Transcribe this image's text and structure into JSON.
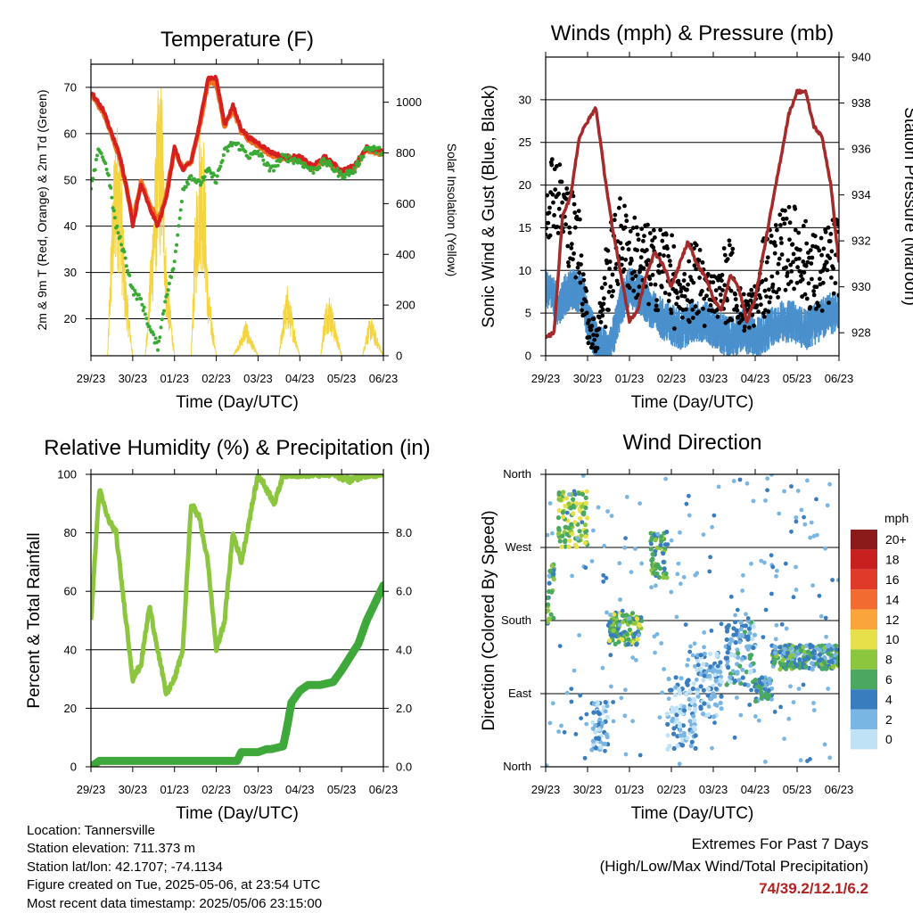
{
  "chart_data": [
    {
      "id": "temperature",
      "type": "line",
      "title": "Temperature (F)",
      "xlabel": "Time (Day/UTC)",
      "ylabel": "2m & 9m T (Red, Orange) & 2m Td (Green)",
      "ylabel_right": "Solar Insolation (Yellow)",
      "x_ticks": [
        "29/23",
        "30/23",
        "01/23",
        "02/23",
        "03/23",
        "04/23",
        "05/23",
        "06/23"
      ],
      "ylim": [
        12,
        75
      ],
      "y_ticks": [
        20,
        30,
        40,
        50,
        60,
        70
      ],
      "ylim_right": [
        0,
        1150
      ],
      "y_ticks_right": [
        0,
        200,
        400,
        600,
        800,
        1000
      ],
      "grid": true,
      "series": [
        {
          "name": "2m T",
          "color": "#d62020",
          "x": [
            0,
            0.3,
            0.5,
            0.7,
            0.9,
            1.0,
            1.2,
            1.4,
            1.6,
            1.8,
            2.0,
            2.2,
            2.4,
            2.6,
            2.8,
            3.0,
            3.2,
            3.4,
            3.6,
            3.8,
            4.0,
            4.3,
            4.6,
            5.0,
            5.3,
            5.6,
            6.0,
            6.3,
            6.6,
            7.0
          ],
          "values": [
            69,
            65,
            60,
            55,
            46,
            40,
            49,
            44,
            40,
            46,
            57,
            52,
            54,
            62,
            72,
            72,
            62,
            66,
            61,
            59,
            58,
            56,
            55,
            55,
            53,
            55,
            52,
            53,
            57,
            56
          ]
        },
        {
          "name": "9m T",
          "color": "#f07020",
          "x": [
            0,
            0.3,
            0.5,
            0.7,
            0.9,
            1.0,
            1.2,
            1.4,
            1.6,
            1.8,
            2.0,
            2.2,
            2.4,
            2.6,
            2.8,
            3.0,
            3.2,
            3.4,
            3.6,
            3.8,
            4.0,
            4.3,
            4.6,
            5.0,
            5.3,
            5.6,
            6.0,
            6.3,
            6.6,
            7.0
          ],
          "values": [
            68.5,
            64.5,
            59.5,
            54.5,
            46,
            41,
            49.5,
            45,
            41,
            46.5,
            56.5,
            52.5,
            54,
            61.5,
            71,
            71,
            61.5,
            65.5,
            60.5,
            58.5,
            57.5,
            55.5,
            54.5,
            54.5,
            52.5,
            54.5,
            51.5,
            52.5,
            56.5,
            55.5
          ]
        },
        {
          "name": "2m Td",
          "color": "#3aaa35",
          "x": [
            0,
            0.2,
            0.4,
            0.6,
            0.8,
            1.0,
            1.2,
            1.4,
            1.6,
            1.8,
            2.0,
            2.2,
            2.4,
            2.6,
            2.8,
            3.0,
            3.2,
            3.4,
            3.6,
            3.8,
            4.0,
            4.3,
            4.6,
            5.0,
            5.3,
            5.6,
            6.0,
            6.3,
            6.6,
            7.0
          ],
          "values": [
            48,
            57,
            52,
            40,
            34,
            26,
            24,
            18,
            14,
            25,
            32,
            48,
            51,
            49,
            52,
            50,
            56,
            58,
            57,
            55,
            56,
            52,
            55,
            54,
            52,
            54,
            51,
            52,
            57,
            56
          ]
        },
        {
          "name": "Solar Insolation",
          "color": "#f5d442",
          "axis": "right",
          "x": [
            0,
            0.4,
            0.5,
            0.6,
            0.7,
            0.8,
            1.0,
            1.3,
            1.4,
            1.5,
            1.6,
            1.7,
            1.8,
            2.0,
            2.4,
            2.5,
            2.6,
            2.7,
            2.8,
            3.0,
            3.4,
            3.6,
            3.7,
            3.8,
            4.0,
            4.5,
            4.6,
            4.7,
            5.0,
            5.5,
            5.6,
            5.7,
            6.0,
            6.5,
            6.6,
            6.7,
            7.0
          ],
          "values": [
            0,
            0,
            600,
            950,
            900,
            400,
            0,
            0,
            300,
            650,
            1050,
            1100,
            400,
            0,
            0,
            600,
            950,
            900,
            300,
            0,
            0,
            80,
            150,
            90,
            0,
            0,
            180,
            280,
            0,
            0,
            200,
            260,
            0,
            0,
            110,
            160,
            0
          ]
        }
      ]
    },
    {
      "id": "winds",
      "type": "scatter",
      "title": "Winds (mph) & Pressure (mb)",
      "xlabel": "Time (Day/UTC)",
      "ylabel": "Sonic Wind & Gust (Blue, Black)",
      "ylabel_right": "Station Pressure (Maroon)",
      "x_ticks": [
        "29/23",
        "30/23",
        "01/23",
        "02/23",
        "03/23",
        "04/23",
        "05/23",
        "06/23"
      ],
      "ylim": [
        0,
        35
      ],
      "y_ticks": [
        0,
        5,
        10,
        15,
        20,
        25,
        30
      ],
      "ylim_right": [
        927,
        940
      ],
      "y_ticks_right": [
        928,
        930,
        932,
        934,
        936,
        938,
        940
      ],
      "grid": true,
      "series": [
        {
          "name": "Sonic Wind",
          "color": "#4a90cc",
          "x": [
            0,
            0.3,
            0.6,
            0.9,
            1.0,
            1.2,
            1.5,
            1.8,
            2.0,
            2.3,
            2.6,
            2.9,
            3.2,
            3.5,
            3.8,
            4.1,
            4.4,
            4.7,
            5.0,
            5.3,
            5.6,
            5.9,
            6.2,
            6.5,
            6.8,
            7.0
          ],
          "values": [
            8,
            6,
            8,
            7,
            4,
            2,
            0,
            6,
            8,
            7,
            5,
            4,
            3,
            4,
            4,
            3,
            2,
            3,
            2,
            3,
            4,
            4,
            3,
            4,
            5,
            5
          ]
        },
        {
          "name": "Gust",
          "color": "#000000",
          "x": [
            0,
            0.2,
            0.4,
            0.6,
            0.8,
            1.0,
            1.2,
            1.5,
            1.8,
            2.0,
            2.3,
            2.6,
            2.9,
            3.2,
            3.5,
            3.8,
            4.1,
            4.4,
            4.7,
            5.0,
            5.3,
            5.6,
            5.9,
            6.2,
            6.5,
            6.8,
            7.0
          ],
          "values": [
            18,
            20,
            17,
            15,
            13,
            4,
            2,
            10,
            14,
            12,
            11,
            10,
            11,
            6,
            9,
            8,
            7,
            9,
            5,
            6,
            10,
            12,
            13,
            11,
            9,
            11,
            12
          ]
        },
        {
          "name": "Station Pressure",
          "color": "#a52a2a",
          "axis": "right",
          "x": [
            0,
            0.2,
            0.4,
            0.6,
            0.8,
            1.0,
            1.2,
            1.4,
            1.6,
            1.8,
            2.0,
            2.2,
            2.4,
            2.6,
            2.8,
            3.0,
            3.2,
            3.4,
            3.6,
            3.8,
            4.0,
            4.2,
            4.4,
            4.6,
            4.8,
            5.0,
            5.2,
            5.4,
            5.6,
            5.8,
            6.0,
            6.2,
            6.4,
            6.6,
            6.8,
            7.0
          ],
          "values": [
            927.8,
            928.0,
            933.0,
            934.0,
            936.5,
            937.2,
            937.8,
            935.0,
            932.5,
            930.5,
            928.5,
            929.0,
            930.5,
            931.5,
            931.0,
            930.0,
            931.0,
            932.0,
            931.0,
            930.5,
            929.5,
            929.0,
            930.5,
            930.0,
            928.5,
            929.5,
            931.5,
            933.5,
            935.5,
            937.5,
            938.5,
            938.5,
            937.0,
            936.5,
            934.5,
            931.0
          ]
        }
      ]
    },
    {
      "id": "rh",
      "type": "line",
      "title": "Relative Humidity (%) & Precipitation (in)",
      "xlabel": "Time (Day/UTC)",
      "ylabel": "Percent & Total Rainfall",
      "x_ticks": [
        "29/23",
        "30/23",
        "01/23",
        "02/23",
        "03/23",
        "04/23",
        "05/23",
        "06/23"
      ],
      "ylim": [
        0,
        100
      ],
      "y_ticks": [
        0,
        20,
        40,
        60,
        80,
        100
      ],
      "ylim_right": [
        0,
        10
      ],
      "y_ticks_right": [
        "0.0",
        "2.0",
        "4.0",
        "6.0",
        "8.0"
      ],
      "grid": true,
      "series": [
        {
          "name": "Relative Humidity",
          "color": "#8cc63f",
          "x": [
            0,
            0.2,
            0.4,
            0.6,
            0.8,
            1.0,
            1.2,
            1.4,
            1.6,
            1.8,
            2.0,
            2.2,
            2.4,
            2.6,
            2.8,
            3.0,
            3.2,
            3.4,
            3.6,
            3.8,
            4.0,
            4.2,
            4.4,
            4.6,
            4.8,
            5.0,
            5.4,
            5.8,
            6.2,
            6.6,
            7.0
          ],
          "values": [
            50,
            95,
            85,
            80,
            55,
            30,
            35,
            55,
            40,
            25,
            30,
            40,
            90,
            85,
            70,
            40,
            50,
            80,
            70,
            85,
            100,
            95,
            90,
            100,
            100,
            100,
            100,
            100,
            98,
            100,
            100
          ]
        },
        {
          "name": "Total Rainfall",
          "color": "#3ea83a",
          "axis": "right",
          "x": [
            0,
            0.2,
            0.5,
            1.0,
            2.0,
            3.0,
            3.5,
            3.6,
            4.0,
            4.2,
            4.3,
            4.6,
            4.7,
            4.8,
            5.0,
            5.2,
            5.5,
            5.8,
            6.0,
            6.4,
            6.6,
            6.8,
            7.0
          ],
          "values": [
            0,
            0.2,
            0.2,
            0.2,
            0.2,
            0.2,
            0.2,
            0.5,
            0.5,
            0.6,
            0.6,
            0.7,
            1.4,
            2.2,
            2.6,
            2.8,
            2.8,
            2.9,
            3.3,
            4.2,
            5.0,
            5.6,
            6.2
          ]
        }
      ]
    },
    {
      "id": "winddir",
      "type": "scatter",
      "title": "Wind Direction",
      "xlabel": "Time (Day/UTC)",
      "ylabel": "Direction (Colored By Speed)",
      "x_ticks": [
        "29/23",
        "30/23",
        "01/23",
        "02/23",
        "03/23",
        "04/23",
        "05/23",
        "06/23"
      ],
      "y_ticks": [
        "North",
        "East",
        "South",
        "West",
        "North"
      ],
      "ylim": [
        0,
        360
      ],
      "grid": true,
      "colorbar": {
        "title": "mph",
        "labels": [
          "20+",
          "18",
          "16",
          "14",
          "12",
          "10",
          "8",
          "6",
          "4",
          "2",
          "0"
        ],
        "colors": [
          "#8b1a1a",
          "#c8201f",
          "#e03a2a",
          "#f26b30",
          "#f9a53a",
          "#e8e04a",
          "#8cc63f",
          "#4aa860",
          "#3a7dbf",
          "#7ab6e4",
          "#bfe2f7"
        ]
      },
      "clusters": [
        {
          "x": [
            0,
            0.2
          ],
          "dir": [
            170,
            250
          ],
          "speed": 6
        },
        {
          "x": [
            0.3,
            1.0
          ],
          "dir": [
            270,
            340
          ],
          "speed": 8
        },
        {
          "x": [
            1.1,
            1.5
          ],
          "dir": [
            20,
            80
          ],
          "speed": 2
        },
        {
          "x": [
            1.5,
            2.3
          ],
          "dir": [
            150,
            190
          ],
          "speed": 7
        },
        {
          "x": [
            2.5,
            2.9
          ],
          "dir": [
            230,
            290
          ],
          "speed": 6
        },
        {
          "x": [
            2.9,
            3.6
          ],
          "dir": [
            20,
            110
          ],
          "speed": 2
        },
        {
          "x": [
            3.6,
            4.2
          ],
          "dir": [
            60,
            140
          ],
          "speed": 2
        },
        {
          "x": [
            4.3,
            5.0
          ],
          "dir": [
            100,
            180
          ],
          "speed": 3
        },
        {
          "x": [
            5.0,
            5.4
          ],
          "dir": [
            80,
            110
          ],
          "speed": 4
        },
        {
          "x": [
            5.4,
            7.0
          ],
          "dir": [
            120,
            150
          ],
          "speed": 5
        }
      ]
    }
  ],
  "info": {
    "location": "Location: Tannersville",
    "elevation": "Station elevation: 711.373 m",
    "latlon": "Station lat/lon: 42.1707; -74.1134",
    "created": "Figure created on Tue, 2025-05-06, at 23:54 UTC",
    "recent": "Most recent data timestamp: 2025/05/06 23:15:00"
  },
  "extremes": {
    "title": "Extremes For Past 7 Days",
    "subtitle": "(High/Low/Max Wind/Total Precipitation)",
    "values": "74/39.2/12.1/6.2"
  }
}
